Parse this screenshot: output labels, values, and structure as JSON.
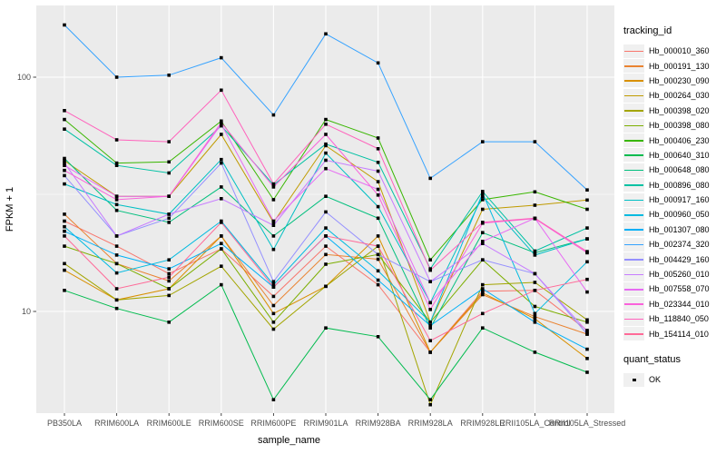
{
  "chart_data": {
    "type": "line",
    "title": "",
    "xlabel": "sample_name",
    "ylabel": "FPKM + 1",
    "y_scale": "log10",
    "y_ticks": [
      10,
      100
    ],
    "y_minor_ticks": [
      3.1623,
      31.6228,
      316.228
    ],
    "ylim_px_note": "log scale, decade spans panel; values approx read from pixels",
    "grid": true,
    "legend_position": "right",
    "categories": [
      "PB350LA",
      "RRIM600LA",
      "RRIM600LE",
      "RRIM600SE",
      "RRIM600PE",
      "RRIM901LA",
      "RRIM928BA",
      "RRIM928LA",
      "RRIM928LE",
      "RRII105LA_Control",
      "RRII105LA_Stressed"
    ],
    "series": [
      {
        "name": "Hb_000010_360",
        "color": "#F8766D",
        "values": [
          24.3,
          19,
          14.5,
          18.5,
          11.6,
          19,
          13,
          6.7,
          12.2,
          12.3,
          8.3
        ]
      },
      {
        "name": "Hb_000191_130",
        "color": "#EA8331",
        "values": [
          26,
          16,
          13.5,
          21,
          10.6,
          17.5,
          16.7,
          6.7,
          11.8,
          9.5,
          8.0
        ]
      },
      {
        "name": "Hb_000230_090",
        "color": "#D89000",
        "values": [
          15,
          11.2,
          12.5,
          21,
          9.8,
          12.8,
          21,
          6.7,
          12,
          9.3,
          6.3
        ]
      },
      {
        "name": "Hb_000264_030",
        "color": "#C09B00",
        "values": [
          44,
          31,
          31,
          57,
          24,
          51,
          35.8,
          9,
          27.3,
          28.4,
          29.9
        ]
      },
      {
        "name": "Hb_000398_020",
        "color": "#A3A500",
        "values": [
          16,
          11.2,
          11.7,
          15.6,
          8.4,
          12.8,
          19,
          4.0,
          13,
          13.3,
          9.2
        ]
      },
      {
        "name": "Hb_000398_080",
        "color": "#7CAE00",
        "values": [
          19,
          16,
          12.5,
          18.5,
          9.0,
          15.9,
          17.5,
          9.0,
          16.6,
          10.5,
          9.0
        ]
      },
      {
        "name": "Hb_000406_230",
        "color": "#39B600",
        "values": [
          66,
          43,
          43.5,
          65,
          30,
          66,
          55,
          16.6,
          30,
          32.4,
          27.3
        ]
      },
      {
        "name": "Hb_000640_310",
        "color": "#00BB4E",
        "values": [
          12.3,
          10.3,
          9.0,
          13,
          4.2,
          8.5,
          7.8,
          4.2,
          8.5,
          6.7,
          5.5
        ]
      },
      {
        "name": "Hb_000648_080",
        "color": "#00BF7D",
        "values": [
          45,
          27,
          24,
          34,
          21,
          31,
          25,
          8.5,
          21.7,
          17.8,
          20.4
        ]
      },
      {
        "name": "Hb_000896_080",
        "color": "#00C1A3",
        "values": [
          60,
          42,
          39,
          62,
          34.7,
          51.8,
          43.3,
          15.2,
          32.5,
          18.1,
          22.7
        ]
      },
      {
        "name": "Hb_000917_160",
        "color": "#00BFC4",
        "values": [
          35,
          28.6,
          26,
          44.5,
          18.4,
          47.4,
          28,
          10.9,
          31,
          17.4,
          20.4
        ]
      },
      {
        "name": "Hb_000960_050",
        "color": "#00BAE0",
        "values": [
          23,
          14.6,
          16.6,
          24.3,
          13,
          22.7,
          14.9,
          9,
          32,
          9.8,
          16.3
        ]
      },
      {
        "name": "Hb_001307_080",
        "color": "#00B0F6",
        "values": [
          22,
          17.4,
          15.2,
          19.5,
          12.7,
          21,
          13.6,
          8.7,
          12.5,
          9.0,
          6.9
        ]
      },
      {
        "name": "Hb_002374_320",
        "color": "#35A2FF",
        "values": [
          167,
          100,
          102,
          121,
          69,
          153,
          115,
          37,
          53,
          53,
          33
        ]
      },
      {
        "name": "Hb_004429_160",
        "color": "#9590FF",
        "values": [
          38,
          21,
          25,
          43,
          13.4,
          26.6,
          17.5,
          13.4,
          16.6,
          14.5,
          8.0
        ]
      },
      {
        "name": "Hb_005260_010",
        "color": "#C77CFF",
        "values": [
          43,
          21,
          26,
          30.3,
          23.3,
          44.2,
          39.7,
          13.4,
          19.5,
          14.5,
          8.2
        ]
      },
      {
        "name": "Hb_007558_070",
        "color": "#E76BF3",
        "values": [
          42,
          31,
          31,
          63,
          24.3,
          40.7,
          33.2,
          10.9,
          19.9,
          25,
          12.1
        ]
      },
      {
        "name": "Hb_023344_010",
        "color": "#FA62DB",
        "values": [
          40,
          30,
          31,
          64,
          34,
          57,
          31.4,
          10.2,
          23.8,
          24.9,
          17.8
        ]
      },
      {
        "name": "Hb_118840_050",
        "color": "#FF62BC",
        "values": [
          72,
          54,
          53,
          88,
          35,
          63,
          49.5,
          15,
          24,
          25,
          18
        ]
      },
      {
        "name": "Hb_154114_010",
        "color": "#FF6A98",
        "values": [
          21,
          12.5,
          14,
          24,
          12.7,
          21,
          19,
          7.5,
          9.8,
          12.3,
          13.7
        ]
      }
    ],
    "legend": {
      "color_title": "tracking_id",
      "shape_title": "quant_status",
      "shape_items": [
        {
          "label": "OK"
        }
      ]
    }
  },
  "colors": {
    "panel_bg": "#EBEBEB",
    "grid": "#FFFFFF",
    "axis_text": "#4D4D4D",
    "axis_title": "#000000",
    "tick_mark": "#333333",
    "point": "#000000",
    "legend_key_bg": "#F0F0F0"
  }
}
